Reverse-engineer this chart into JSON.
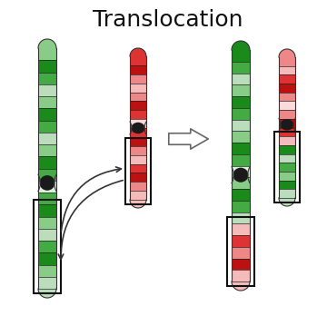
{
  "title": "Translocation",
  "title_fontsize": 18,
  "title_color": "#111111",
  "bg_color": "#ffffff",
  "green_dark": "#1a8a1a",
  "green_mid": "#44aa44",
  "green_light": "#88cc88",
  "green_pale": "#bbddbb",
  "green_white": "#ddeedd",
  "red_dark": "#bb1111",
  "red_mid": "#dd3333",
  "red_light": "#ee8888",
  "red_pale": "#f5bbbb",
  "red_white": "#fadada",
  "centromere_color": "#111111",
  "box_color": "#111111"
}
